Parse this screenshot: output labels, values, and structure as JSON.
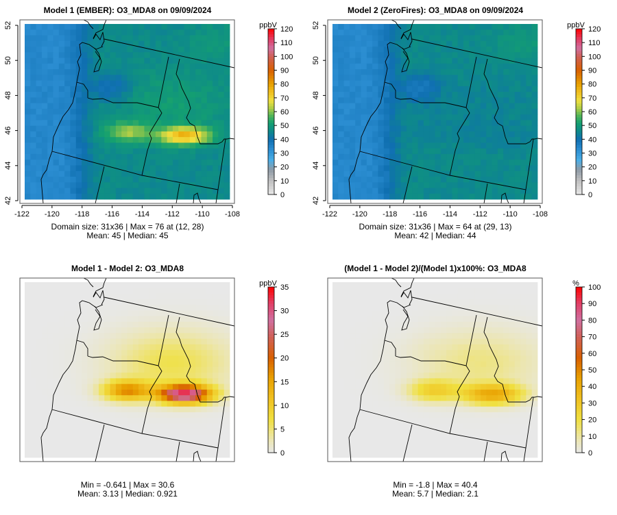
{
  "panels": [
    {
      "id": "model1",
      "title": "Model 1 (EMBER): O3_MDA8 on 09/09/2024",
      "unit": "ppbV",
      "stats_line1": "Domain size: 31x36 | Max = 76 at (12, 28)",
      "stats_line2": "Mean: 45 |  Median: 45",
      "show_axes": true,
      "scale": "conc",
      "colorbar_ticks": [
        "0",
        "10",
        "20",
        "30",
        "40",
        "50",
        "60",
        "70",
        "80",
        "90",
        "100",
        "110",
        "120"
      ],
      "range": [
        0,
        120
      ]
    },
    {
      "id": "model2",
      "title": "Model 2 (ZeroFires): O3_MDA8 on 09/09/2024",
      "unit": "ppbV",
      "stats_line1": "Domain size: 31x36 | Max = 64 at (29, 13)",
      "stats_line2": "Mean: 42 |  Median: 44",
      "show_axes": true,
      "scale": "conc",
      "colorbar_ticks": [
        "0",
        "10",
        "20",
        "30",
        "40",
        "50",
        "60",
        "70",
        "80",
        "90",
        "100",
        "110",
        "120"
      ],
      "range": [
        0,
        120
      ]
    },
    {
      "id": "diff",
      "title": "Model 1 - Model 2: O3_MDA8",
      "unit": "ppbV",
      "stats_line1": "Min = -0.641 | Max = 30.6",
      "stats_line2": "Mean: 3.13 |  Median: 0.921",
      "show_axes": false,
      "scale": "diff",
      "colorbar_ticks": [
        "0",
        "5",
        "10",
        "15",
        "20",
        "25",
        "30",
        "35"
      ],
      "range": [
        0,
        35
      ]
    },
    {
      "id": "pctdiff",
      "title": "(Model 1 - Model 2)/(Model 1)x100%: O3_MDA8",
      "unit": "%",
      "stats_line1": "Min = -1.8 | Max = 40.4",
      "stats_line2": "Mean: 5.7 |  Median: 2.1",
      "show_axes": false,
      "scale": "diff",
      "colorbar_ticks": [
        "0",
        "10",
        "20",
        "30",
        "40",
        "50",
        "60",
        "70",
        "80",
        "90",
        "100"
      ],
      "range": [
        0,
        100
      ]
    }
  ],
  "axes": {
    "lon_ticks": [
      "-122",
      "-120",
      "-118",
      "-116",
      "-114",
      "-112",
      "-110",
      "-108"
    ],
    "lat_ticks": [
      "42",
      "44",
      "46",
      "48",
      "50",
      "52"
    ]
  },
  "chart_data": {
    "type": "heatmap",
    "grid": {
      "rows": 31,
      "cols": 36
    },
    "lon_range": [
      -122,
      -108
    ],
    "lat_range": [
      42,
      52
    ],
    "colors": {
      "conc": [
        [
          0,
          "#e8e8e8"
        ],
        [
          10,
          "#c0c0c0"
        ],
        [
          18,
          "#8f9aa6"
        ],
        [
          25,
          "#4aaee6"
        ],
        [
          33,
          "#2a8cd0"
        ],
        [
          40,
          "#0f6fb0"
        ],
        [
          46,
          "#0e8a8a"
        ],
        [
          52,
          "#14a070"
        ],
        [
          57,
          "#50b458"
        ],
        [
          62,
          "#a8cc48"
        ],
        [
          68,
          "#f0e040"
        ],
        [
          74,
          "#f0c020"
        ],
        [
          80,
          "#e8a000"
        ],
        [
          90,
          "#d86000"
        ],
        [
          100,
          "#d06058"
        ],
        [
          106,
          "#d070a0"
        ],
        [
          112,
          "#e04068"
        ],
        [
          120,
          "#ff0000"
        ]
      ],
      "diff": [
        [
          0,
          "#e8e8e8"
        ],
        [
          0.08,
          "#ece6b0"
        ],
        [
          0.2,
          "#f0e040"
        ],
        [
          0.33,
          "#f0c020"
        ],
        [
          0.45,
          "#e8a000"
        ],
        [
          0.57,
          "#d86000"
        ],
        [
          0.7,
          "#d06058"
        ],
        [
          0.8,
          "#d070a0"
        ],
        [
          0.9,
          "#e04068"
        ],
        [
          1,
          "#ff0000"
        ]
      ]
    },
    "fields": {
      "base_west_ppbV": 34,
      "base_east_ppbV": 46,
      "plume_hotspots": [
        {
          "lon": -115,
          "lat": 45.9,
          "delta_ppbV": 15
        },
        {
          "lon": -111.2,
          "lat": 45.7,
          "delta_ppbV": 30
        }
      ]
    }
  }
}
